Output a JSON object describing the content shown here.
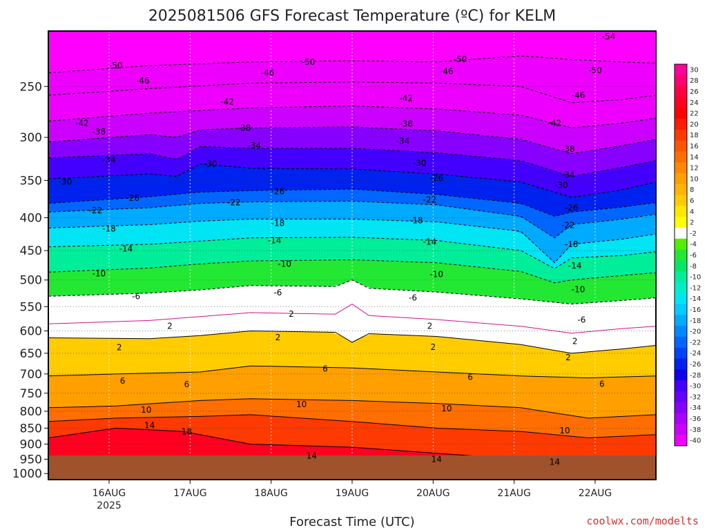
{
  "chart_data": {
    "type": "heatmap",
    "title": "2025081506 GFS Forecast Temperature (ºC) for KELM",
    "xlabel": "Forecast Time (UTC)",
    "ylabel": "",
    "credit": "coolwx.com/modelts",
    "x_ticks": [
      "16AUG",
      "17AUG",
      "18AUG",
      "19AUG",
      "20AUG",
      "21AUG",
      "22AUG"
    ],
    "x_tick_year": "2025",
    "x_tick_hours": [
      18,
      42,
      66,
      90,
      114,
      138,
      162
    ],
    "xlim": [
      0,
      180
    ],
    "y_ticks": [
      250,
      300,
      350,
      400,
      450,
      500,
      550,
      600,
      650,
      700,
      750,
      800,
      850,
      900,
      950,
      1000
    ],
    "y_scale": "log",
    "ylim": [
      1022,
      205
    ],
    "ground_level_hpa": 965,
    "colorbar": {
      "levels": [
        30,
        28,
        26,
        24,
        22,
        20,
        18,
        16,
        14,
        12,
        10,
        8,
        6,
        4,
        2,
        -2,
        -4,
        -6,
        -8,
        -10,
        -12,
        -14,
        -16,
        -18,
        -20,
        -22,
        -24,
        -26,
        -28,
        -30,
        -32,
        -34,
        -36,
        -38,
        -40
      ],
      "colors": [
        "#ff009c",
        "#ff0070",
        "#ff0046",
        "#ff0020",
        "#ff0000",
        "#ff1c00",
        "#ff3a00",
        "#ff5400",
        "#ff6e00",
        "#ff8800",
        "#ffa000",
        "#ffb600",
        "#ffcc00",
        "#ffe800",
        "#ffff00",
        "#ffffff",
        "#55ee00",
        "#22e833",
        "#00e866",
        "#00ee99",
        "#00eecc",
        "#00e4f4",
        "#00ccff",
        "#00aaff",
        "#0088ff",
        "#0066ff",
        "#0044ff",
        "#0022ee",
        "#1000ee",
        "#4400ff",
        "#6600ff",
        "#8800ff",
        "#aa00ff",
        "#cc00ff",
        "#ee00ff"
      ]
    },
    "isotherms": [
      {
        "value": -50,
        "points": [
          [
            0,
            238
          ],
          [
            30,
            232
          ],
          [
            60,
            229
          ],
          [
            90,
            228
          ],
          [
            115,
            229
          ],
          [
            140,
            224
          ],
          [
            155,
            227
          ],
          [
            170,
            229
          ],
          [
            180,
            230
          ]
        ]
      },
      {
        "value": -46,
        "points": [
          [
            0,
            258
          ],
          [
            30,
            252
          ],
          [
            60,
            247
          ],
          [
            90,
            246
          ],
          [
            115,
            247
          ],
          [
            140,
            250
          ],
          [
            155,
            265
          ],
          [
            170,
            262
          ],
          [
            180,
            258
          ]
        ]
      },
      {
        "value": -42,
        "points": [
          [
            0,
            283
          ],
          [
            30,
            275
          ],
          [
            60,
            270
          ],
          [
            90,
            268
          ],
          [
            115,
            271
          ],
          [
            140,
            277
          ],
          [
            155,
            290
          ],
          [
            170,
            285
          ],
          [
            180,
            280
          ]
        ]
      },
      {
        "value": -38,
        "points": [
          [
            0,
            305
          ],
          [
            30,
            297
          ],
          [
            38,
            300
          ],
          [
            45,
            292
          ],
          [
            60,
            290
          ],
          [
            90,
            289
          ],
          [
            115,
            293
          ],
          [
            140,
            302
          ],
          [
            155,
            318
          ],
          [
            170,
            309
          ],
          [
            180,
            302
          ]
        ]
      },
      {
        "value": -34,
        "points": [
          [
            0,
            323
          ],
          [
            30,
            318
          ],
          [
            38,
            325
          ],
          [
            45,
            310
          ],
          [
            60,
            312
          ],
          [
            90,
            312
          ],
          [
            115,
            317
          ],
          [
            140,
            326
          ],
          [
            155,
            345
          ],
          [
            170,
            334
          ],
          [
            180,
            326
          ]
        ]
      },
      {
        "value": -30,
        "points": [
          [
            0,
            348
          ],
          [
            30,
            342
          ],
          [
            38,
            345
          ],
          [
            45,
            330
          ],
          [
            60,
            335
          ],
          [
            90,
            336
          ],
          [
            115,
            342
          ],
          [
            140,
            352
          ],
          [
            155,
            372
          ],
          [
            170,
            362
          ],
          [
            180,
            352
          ]
        ]
      },
      {
        "value": -26,
        "points": [
          [
            0,
            380
          ],
          [
            30,
            371
          ],
          [
            45,
            365
          ],
          [
            60,
            363
          ],
          [
            90,
            361
          ],
          [
            115,
            368
          ],
          [
            140,
            380
          ],
          [
            150,
            398
          ],
          [
            155,
            392
          ],
          [
            170,
            385
          ],
          [
            180,
            379
          ]
        ]
      },
      {
        "value": -22,
        "points": [
          [
            0,
            392
          ],
          [
            30,
            386
          ],
          [
            45,
            380
          ],
          [
            60,
            378
          ],
          [
            90,
            377
          ],
          [
            115,
            382
          ],
          [
            140,
            398
          ],
          [
            150,
            430
          ],
          [
            155,
            410
          ],
          [
            170,
            402
          ],
          [
            180,
            395
          ]
        ]
      },
      {
        "value": -18,
        "points": [
          [
            0,
            415
          ],
          [
            30,
            410
          ],
          [
            45,
            405
          ],
          [
            60,
            402
          ],
          [
            90,
            402
          ],
          [
            115,
            406
          ],
          [
            140,
            420
          ],
          [
            150,
            470
          ],
          [
            155,
            440
          ],
          [
            170,
            432
          ],
          [
            180,
            424
          ]
        ]
      },
      {
        "value": -14,
        "points": [
          [
            0,
            444
          ],
          [
            30,
            440
          ],
          [
            45,
            435
          ],
          [
            60,
            430
          ],
          [
            90,
            429
          ],
          [
            115,
            434
          ],
          [
            140,
            450
          ],
          [
            150,
            480
          ],
          [
            155,
            462
          ],
          [
            170,
            458
          ],
          [
            180,
            452
          ]
        ]
      },
      {
        "value": -10,
        "points": [
          [
            0,
            486
          ],
          [
            30,
            479
          ],
          [
            45,
            472
          ],
          [
            60,
            467
          ],
          [
            90,
            465
          ],
          [
            115,
            470
          ],
          [
            140,
            485
          ],
          [
            150,
            505
          ],
          [
            155,
            500
          ],
          [
            170,
            492
          ],
          [
            180,
            487
          ]
        ]
      },
      {
        "value": -6,
        "points": [
          [
            0,
            530
          ],
          [
            30,
            524
          ],
          [
            45,
            518
          ],
          [
            60,
            510
          ],
          [
            85,
            512
          ],
          [
            90,
            500
          ],
          [
            95,
            515
          ],
          [
            115,
            522
          ],
          [
            140,
            535
          ],
          [
            155,
            545
          ],
          [
            170,
            538
          ],
          [
            180,
            533
          ]
        ]
      },
      {
        "value": -2,
        "points": [
          [
            0,
            585
          ],
          [
            30,
            578
          ],
          [
            45,
            570
          ],
          [
            60,
            562
          ],
          [
            85,
            565
          ],
          [
            90,
            545
          ],
          [
            95,
            568
          ],
          [
            115,
            576
          ],
          [
            140,
            590
          ],
          [
            155,
            605
          ],
          [
            170,
            595
          ],
          [
            180,
            590
          ]
        ]
      },
      {
        "value": 2,
        "points": [
          [
            0,
            615
          ],
          [
            30,
            617
          ],
          [
            45,
            610
          ],
          [
            60,
            600
          ],
          [
            85,
            603
          ],
          [
            90,
            625
          ],
          [
            95,
            606
          ],
          [
            115,
            612
          ],
          [
            140,
            630
          ],
          [
            155,
            650
          ],
          [
            170,
            640
          ],
          [
            180,
            632
          ]
        ]
      },
      {
        "value": 6,
        "points": [
          [
            0,
            705
          ],
          [
            20,
            700
          ],
          [
            45,
            695
          ],
          [
            60,
            680
          ],
          [
            90,
            685
          ],
          [
            115,
            695
          ],
          [
            140,
            705
          ],
          [
            160,
            710
          ],
          [
            180,
            705
          ]
        ]
      },
      {
        "value": 10,
        "points": [
          [
            0,
            790
          ],
          [
            20,
            785
          ],
          [
            45,
            770
          ],
          [
            60,
            765
          ],
          [
            90,
            770
          ],
          [
            115,
            778
          ],
          [
            140,
            790
          ],
          [
            160,
            820
          ],
          [
            180,
            810
          ]
        ]
      },
      {
        "value": 14,
        "points": [
          [
            0,
            830
          ],
          [
            20,
            820
          ],
          [
            45,
            815
          ],
          [
            60,
            810
          ],
          [
            90,
            830
          ],
          [
            115,
            850
          ],
          [
            140,
            860
          ],
          [
            160,
            880
          ],
          [
            180,
            870
          ]
        ]
      },
      {
        "value": 18,
        "points": [
          [
            0,
            880
          ],
          [
            20,
            850
          ],
          [
            40,
            860
          ],
          [
            50,
            880
          ],
          [
            60,
            900
          ],
          [
            90,
            910
          ],
          [
            115,
            930
          ],
          [
            140,
            950
          ],
          [
            160,
            960
          ],
          [
            180,
            955
          ]
        ]
      }
    ],
    "isotherm_labels": [
      {
        "text": "-54",
        "h": 166,
        "p": 209
      },
      {
        "text": "-50",
        "h": 20,
        "p": 232
      },
      {
        "text": "-50",
        "h": 77,
        "p": 229
      },
      {
        "text": "-50",
        "h": 122,
        "p": 227
      },
      {
        "text": "-50",
        "h": 162,
        "p": 236
      },
      {
        "text": "-46",
        "h": 28,
        "p": 245
      },
      {
        "text": "-46",
        "h": 65,
        "p": 238
      },
      {
        "text": "-46",
        "h": 118,
        "p": 237
      },
      {
        "text": "-46",
        "h": 157,
        "p": 258
      },
      {
        "text": "-42",
        "h": 10,
        "p": 285
      },
      {
        "text": "-42",
        "h": 53,
        "p": 264
      },
      {
        "text": "-42",
        "h": 106,
        "p": 261
      },
      {
        "text": "-42",
        "h": 150,
        "p": 285
      },
      {
        "text": "-38",
        "h": 15,
        "p": 294
      },
      {
        "text": "-38",
        "h": 58,
        "p": 290
      },
      {
        "text": "-38",
        "h": 106,
        "p": 286
      },
      {
        "text": "-38",
        "h": 154,
        "p": 313
      },
      {
        "text": "-34",
        "h": 18,
        "p": 325
      },
      {
        "text": "-34",
        "h": 61,
        "p": 309
      },
      {
        "text": "-34",
        "h": 105,
        "p": 304
      },
      {
        "text": "-34",
        "h": 154,
        "p": 343
      },
      {
        "text": "-30",
        "h": 5,
        "p": 352
      },
      {
        "text": "-30",
        "h": 48,
        "p": 330
      },
      {
        "text": "-30",
        "h": 110,
        "p": 329
      },
      {
        "text": "-30",
        "h": 152,
        "p": 356
      },
      {
        "text": "-26",
        "h": 25,
        "p": 373
      },
      {
        "text": "-26",
        "h": 68,
        "p": 364
      },
      {
        "text": "-26",
        "h": 115,
        "p": 347
      },
      {
        "text": "-26",
        "h": 155,
        "p": 386
      },
      {
        "text": "-22",
        "h": 14,
        "p": 390
      },
      {
        "text": "-22",
        "h": 55,
        "p": 379
      },
      {
        "text": "-22",
        "h": 113,
        "p": 375
      },
      {
        "text": "-22",
        "h": 154,
        "p": 411
      },
      {
        "text": "-18",
        "h": 18,
        "p": 416
      },
      {
        "text": "-18",
        "h": 68,
        "p": 408
      },
      {
        "text": "-18",
        "h": 109,
        "p": 404
      },
      {
        "text": "-18",
        "h": 155,
        "p": 440
      },
      {
        "text": "-14",
        "h": 23,
        "p": 447
      },
      {
        "text": "-14",
        "h": 67,
        "p": 434
      },
      {
        "text": "-14",
        "h": 113,
        "p": 436
      },
      {
        "text": "-14",
        "h": 156,
        "p": 475
      },
      {
        "text": "-10",
        "h": 15,
        "p": 489
      },
      {
        "text": "-10",
        "h": 70,
        "p": 472
      },
      {
        "text": "-10",
        "h": 115,
        "p": 490
      },
      {
        "text": "-10",
        "h": 157,
        "p": 517
      },
      {
        "text": "-6",
        "h": 26,
        "p": 530
      },
      {
        "text": "-6",
        "h": 68,
        "p": 523
      },
      {
        "text": "-6",
        "h": 108,
        "p": 533
      },
      {
        "text": "-6",
        "h": 158,
        "p": 577
      },
      {
        "text": "2",
        "h": 36,
        "p": 590
      },
      {
        "text": "2",
        "h": 72,
        "p": 565
      },
      {
        "text": "2",
        "h": 113,
        "p": 590
      },
      {
        "text": "2",
        "h": 21,
        "p": 637
      },
      {
        "text": "2",
        "h": 68,
        "p": 614
      },
      {
        "text": "2",
        "h": 114,
        "p": 636
      },
      {
        "text": "2",
        "h": 156,
        "p": 623
      },
      {
        "text": "2",
        "h": 154,
        "p": 660
      },
      {
        "text": "6",
        "h": 22,
        "p": 718
      },
      {
        "text": "6",
        "h": 41,
        "p": 727
      },
      {
        "text": "6",
        "h": 82,
        "p": 687
      },
      {
        "text": "6",
        "h": 125,
        "p": 708
      },
      {
        "text": "6",
        "h": 164,
        "p": 726
      },
      {
        "text": "10",
        "h": 29,
        "p": 796
      },
      {
        "text": "10",
        "h": 75,
        "p": 781
      },
      {
        "text": "10",
        "h": 118,
        "p": 792
      },
      {
        "text": "10",
        "h": 153,
        "p": 857
      },
      {
        "text": "14",
        "h": 30,
        "p": 842
      },
      {
        "text": "14",
        "h": 78,
        "p": 938
      },
      {
        "text": "14",
        "h": 115,
        "p": 950
      },
      {
        "text": "14",
        "h": 150,
        "p": 960
      },
      {
        "text": "18",
        "h": 41,
        "p": 861
      }
    ]
  }
}
